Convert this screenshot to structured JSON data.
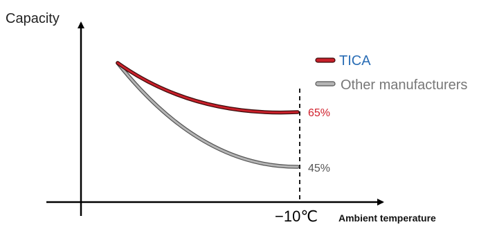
{
  "chart_data": {
    "type": "line",
    "ylabel": "Capacity",
    "xlabel": "Ambient temperature",
    "x_marker": {
      "label": "−10℃",
      "style": "dashed"
    },
    "legend": {
      "placement": "top-right"
    },
    "series": [
      {
        "name": "TICA",
        "color": "#c8202a",
        "label_color": "#2a6db5",
        "end_label": "65%",
        "end_label_color": "#d01f2b"
      },
      {
        "name": "Other manufacturers",
        "color": "#b5b5b5",
        "label_color": "#777777",
        "end_label": "45%",
        "end_label_color": "#555555"
      }
    ]
  }
}
